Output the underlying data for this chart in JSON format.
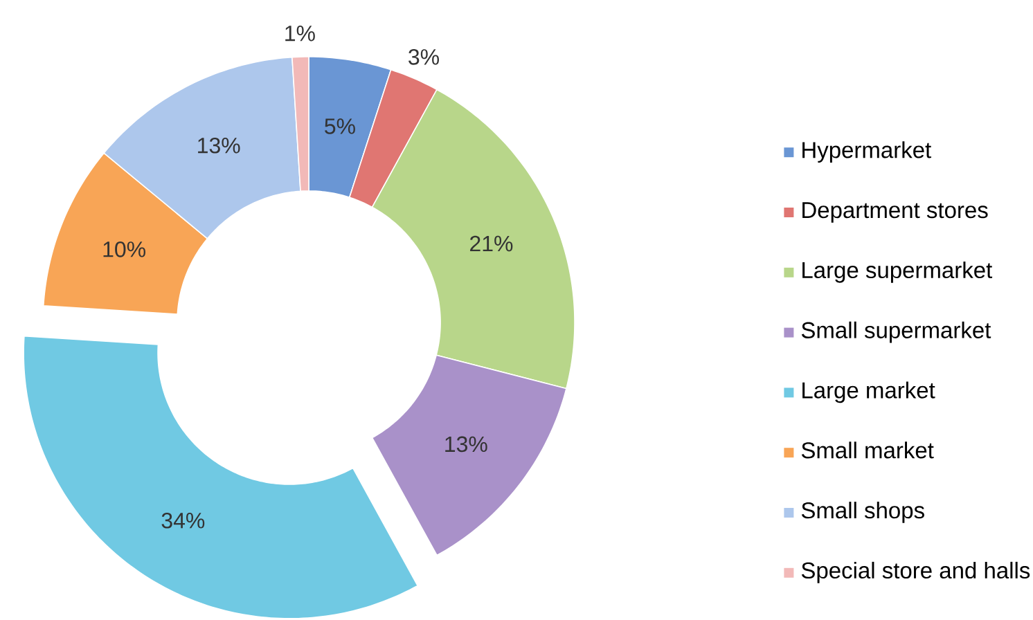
{
  "chart_data": {
    "type": "donut",
    "categories": [
      "Hypermarket",
      "Department stores",
      "Large supermarket",
      "Small supermarket",
      "Large market",
      "Small market",
      "Small shops",
      "Special store and halls"
    ],
    "values": [
      5,
      3,
      21,
      13,
      34,
      10,
      13,
      1
    ],
    "value_labels": [
      "5%",
      "3%",
      "21%",
      "13%",
      "34%",
      "10%",
      "13%",
      "1%"
    ],
    "colors": [
      "#6a96d4",
      "#e07672",
      "#b8d68a",
      "#a991c9",
      "#70c9e3",
      "#f8a556",
      "#adc7ec",
      "#f2b9b8"
    ],
    "legend": "right"
  }
}
